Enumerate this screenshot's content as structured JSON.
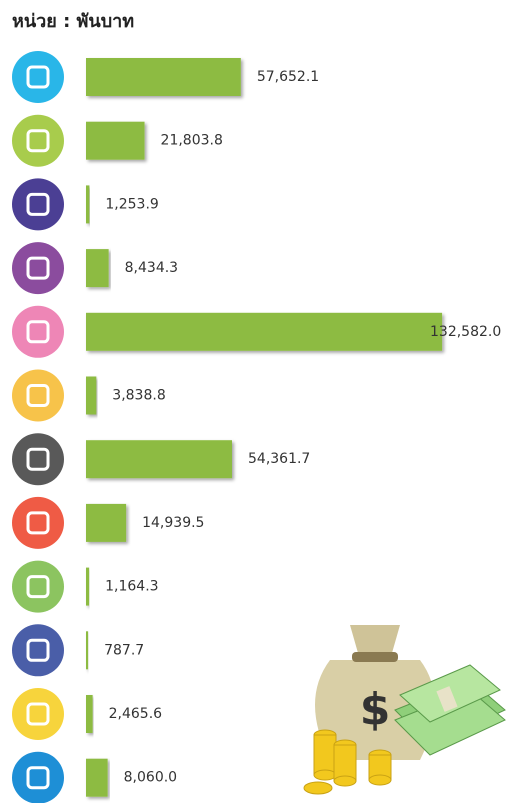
{
  "chart_data": {
    "type": "bar",
    "orientation": "horizontal",
    "title": "หน่วย : พันบาท",
    "values": [
      57652.1,
      21803.8,
      1253.9,
      8434.3,
      132582.0,
      3838.8,
      54361.7,
      14939.5,
      1164.3,
      787.7,
      2465.6,
      8060.0
    ],
    "value_labels": [
      "57,652.1",
      "21,803.8",
      "1,253.9",
      "8,434.3",
      "132,582.0",
      "3,838.8",
      "54,361.7",
      "14,939.5",
      "1,164.3",
      "787.7",
      "2,465.6",
      "8,060.0"
    ],
    "color": "#8dbb43",
    "xlim": [
      0,
      140000
    ]
  }
}
